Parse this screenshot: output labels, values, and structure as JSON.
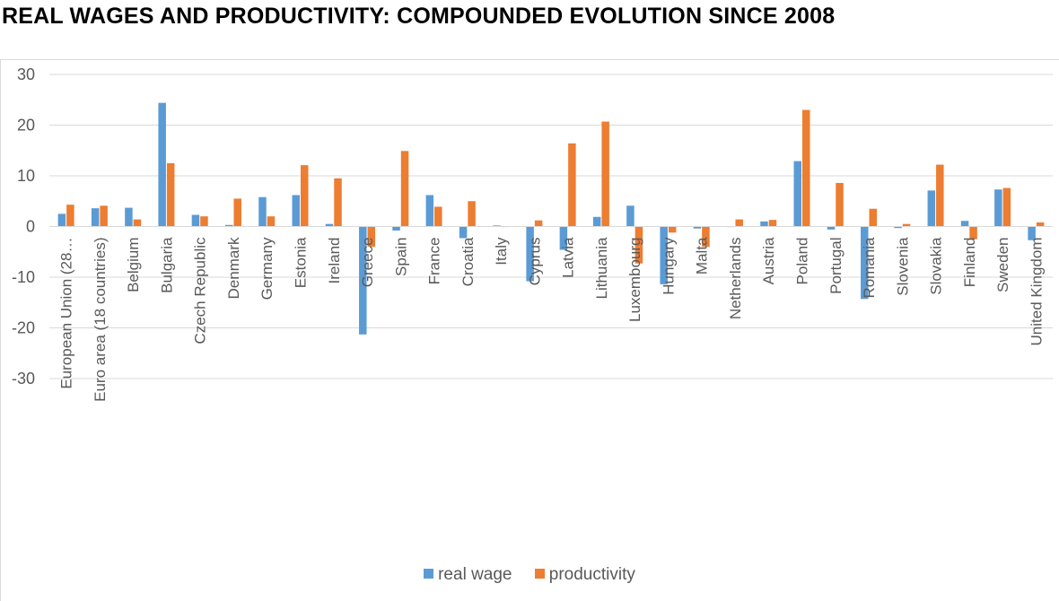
{
  "chart_data": {
    "type": "bar",
    "title": "REAL WAGES AND PRODUCTIVITY: COMPOUNDED EVOLUTION SINCE 2008",
    "xlabel": "",
    "ylabel": "",
    "ylim": [
      -30,
      30
    ],
    "yticks": [
      30,
      20,
      10,
      0,
      -10,
      -20,
      -30
    ],
    "grid": true,
    "legend_position": "bottom",
    "categories": [
      "European Union (28…",
      "Euro area (18 countries)",
      "Belgium",
      "Bulgaria",
      "Czech Republic",
      "Denmark",
      "Germany",
      "Estonia",
      "Ireland",
      "Greece",
      "Spain",
      "France",
      "Croatia",
      "Italy",
      "Cyprus",
      "Latvia",
      "Lithuania",
      "Luxembourg",
      "Hungary",
      "Malta",
      "Netherlands",
      "Austria",
      "Poland",
      "Portugal",
      "Romania",
      "Slovenia",
      "Slovakia",
      "Finland",
      "Sweden",
      "United Kingdom"
    ],
    "series": [
      {
        "name": "real wage",
        "color": "#5b9bd5",
        "values": [
          2.5,
          3.6,
          3.7,
          24.4,
          2.3,
          0.3,
          5.8,
          6.2,
          0.5,
          -21.3,
          -0.8,
          6.2,
          -2.3,
          0.2,
          -10.8,
          -4.6,
          1.9,
          4.1,
          -11.4,
          -0.4,
          0.0,
          1.0,
          12.9,
          -0.6,
          -14.3,
          -0.3,
          7.1,
          1.1,
          7.3,
          -2.7
        ]
      },
      {
        "name": "productivity",
        "color": "#ed7d31",
        "values": [
          4.3,
          4.1,
          1.4,
          12.5,
          2.0,
          5.5,
          2.0,
          12.1,
          9.5,
          -4.0,
          14.9,
          3.9,
          5.0,
          0.0,
          1.2,
          16.4,
          20.7,
          -7.3,
          -1.2,
          -4.0,
          1.4,
          1.3,
          23.0,
          8.6,
          3.5,
          0.5,
          12.2,
          -2.5,
          7.6,
          0.8
        ]
      }
    ]
  }
}
